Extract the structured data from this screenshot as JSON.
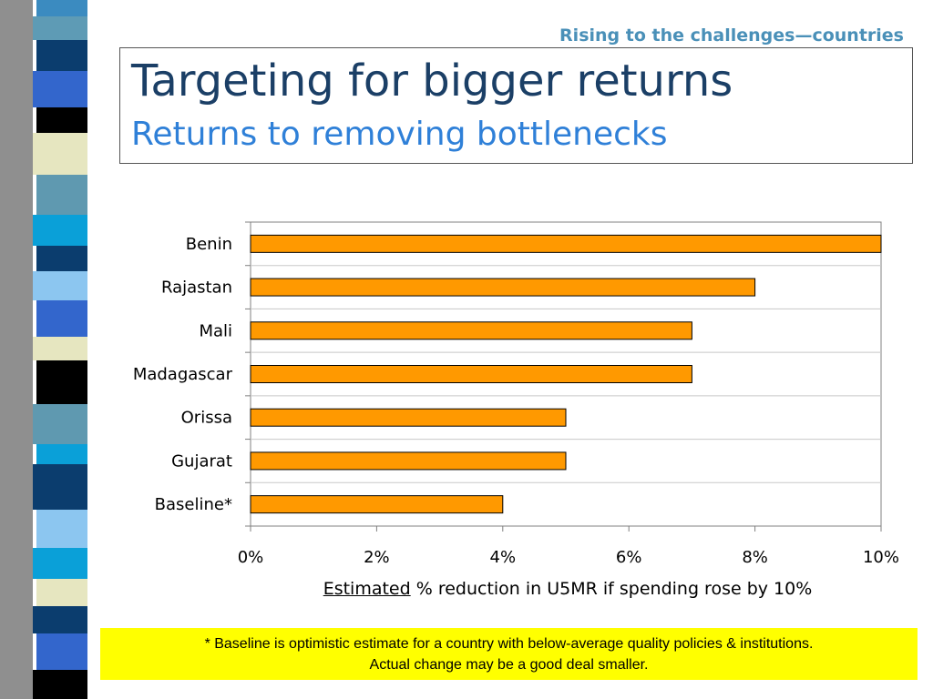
{
  "header": {
    "kicker": "Rising to the challenges—countries",
    "title": "Targeting for bigger returns",
    "subtitle": "Returns to removing bottlenecks"
  },
  "chart_data": {
    "type": "bar",
    "orientation": "horizontal",
    "categories": [
      "Benin",
      "Rajastan",
      "Mali",
      "Madagascar",
      "Orissa",
      "Gujarat",
      "Baseline*"
    ],
    "values": [
      10,
      8,
      7,
      7,
      5,
      5,
      4
    ],
    "xlim": [
      0,
      10
    ],
    "x_ticks": [
      "0%",
      "2%",
      "4%",
      "6%",
      "8%",
      "10%"
    ],
    "xlabel_underlined": "Estimated",
    "xlabel_rest": " % reduction in U5MR if spending rose by 10%",
    "bar_color": "#ff9900",
    "grid": true
  },
  "footnote": {
    "line1": "* Baseline is optimistic estimate for a country with below-average quality policies & institutions.",
    "line2": "Actual change may be a good deal smaller."
  },
  "theme": {
    "footnote_bg": "#ffff00",
    "title_color": "#1b3f66",
    "subtitle_color": "#2f80d8",
    "kicker_color": "#4a90b8"
  }
}
